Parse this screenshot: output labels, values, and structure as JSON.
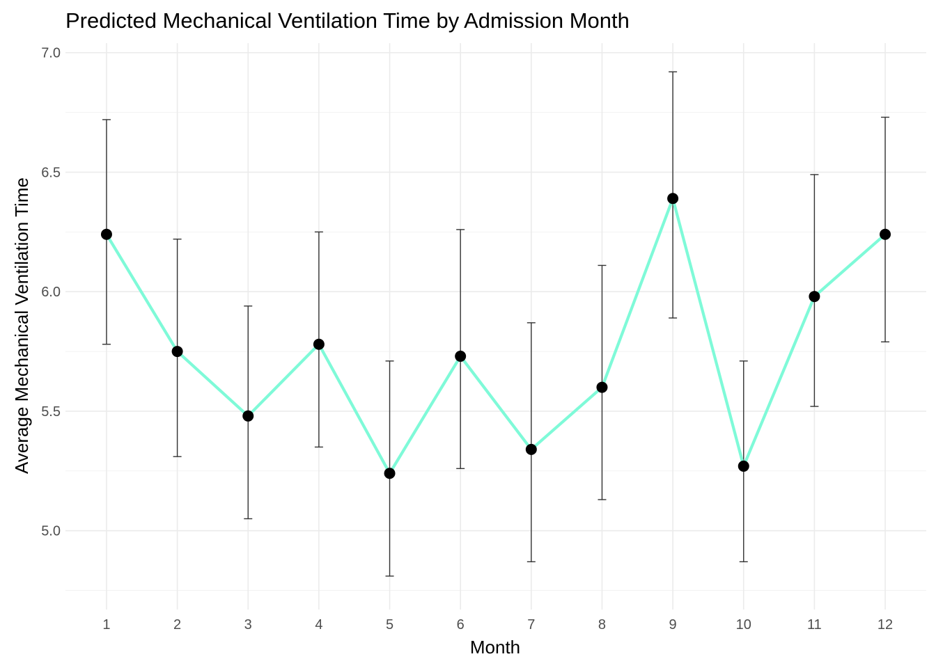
{
  "chart_data": {
    "type": "line",
    "title": "Predicted Mechanical Ventilation Time by Admission Month",
    "xlabel": "Month",
    "ylabel": "Average Mechanical Ventilation Time",
    "x": [
      1,
      2,
      3,
      4,
      5,
      6,
      7,
      8,
      9,
      10,
      11,
      12
    ],
    "x_tick_labels": [
      "1",
      "2",
      "3",
      "4",
      "5",
      "6",
      "7",
      "8",
      "9",
      "10",
      "11",
      "12"
    ],
    "y_ticks": [
      5.0,
      5.5,
      6.0,
      6.5,
      7.0
    ],
    "y_tick_labels": [
      "5.0",
      "5.5",
      "6.0",
      "6.5",
      "7.0"
    ],
    "ylim": [
      4.67,
      7.04
    ],
    "xlim": [
      0.42,
      12.58
    ],
    "grid": true,
    "legend": "none",
    "series": [
      {
        "values": [
          6.24,
          5.75,
          5.48,
          5.78,
          5.24,
          5.73,
          5.34,
          5.6,
          6.39,
          5.27,
          5.98,
          6.24
        ],
        "lower": [
          5.78,
          5.31,
          5.05,
          5.35,
          4.81,
          5.26,
          4.87,
          5.13,
          5.89,
          4.87,
          5.52,
          5.79
        ],
        "upper": [
          6.72,
          6.22,
          5.94,
          6.25,
          5.71,
          6.26,
          5.87,
          6.11,
          6.92,
          5.71,
          6.49,
          6.73
        ],
        "line_color": "#7ffad8",
        "point_color": "#000000",
        "errorbar_color": "#333333"
      }
    ]
  }
}
